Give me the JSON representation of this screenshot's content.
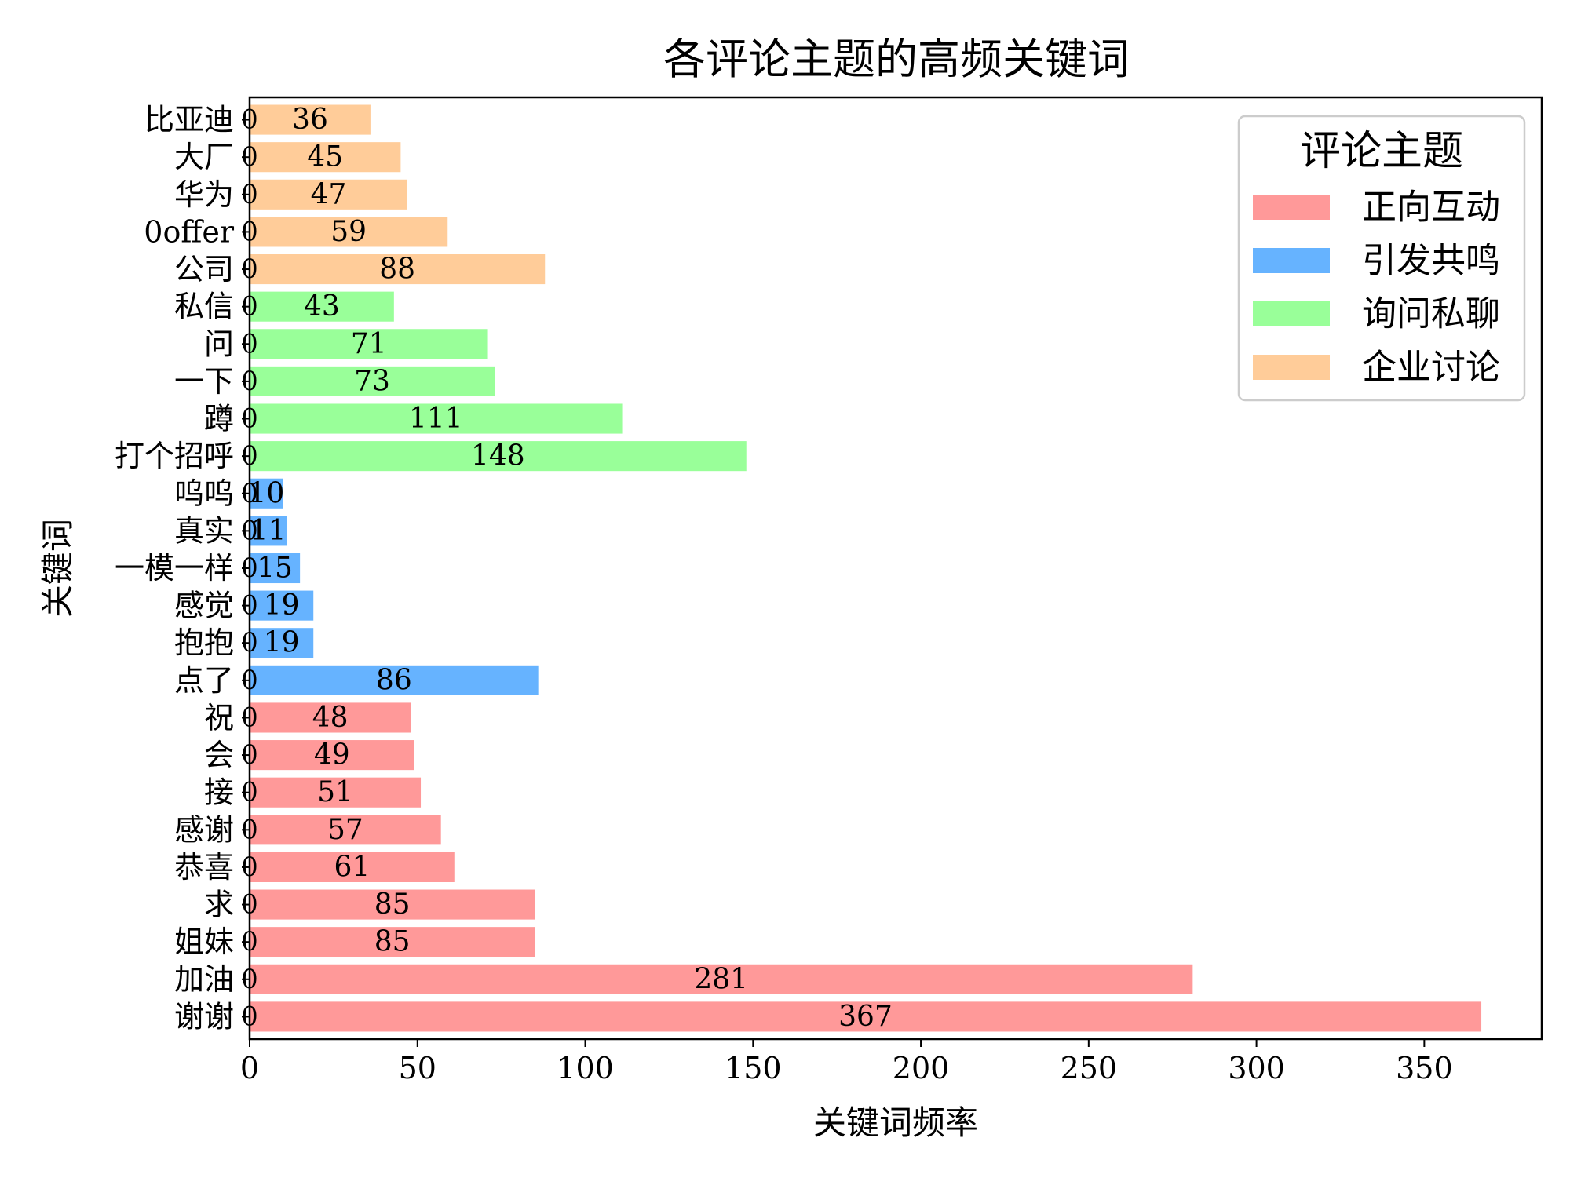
{
  "chart_data": {
    "type": "bar",
    "orientation": "horizontal",
    "title": "各评论主题的高频关键词",
    "xlabel": "关键词频率",
    "ylabel": "关键词",
    "xlim": [
      0,
      385
    ],
    "xticks": [
      0,
      50,
      100,
      150,
      200,
      250,
      300,
      350
    ],
    "grid": false,
    "legend": {
      "title": "评论主题",
      "placement": "top-right",
      "entries": [
        {
          "name": "正向互动",
          "color": "#ff9999"
        },
        {
          "name": "引发共鸣",
          "color": "#66b3ff"
        },
        {
          "name": "询问私聊",
          "color": "#99ff99"
        },
        {
          "name": "企业讨论",
          "color": "#ffcc99"
        }
      ]
    },
    "bars": [
      {
        "keyword": "谢谢",
        "value": 367,
        "theme": "正向互动"
      },
      {
        "keyword": "加油",
        "value": 281,
        "theme": "正向互动"
      },
      {
        "keyword": "姐妹",
        "value": 85,
        "theme": "正向互动"
      },
      {
        "keyword": "求",
        "value": 85,
        "theme": "正向互动"
      },
      {
        "keyword": "恭喜",
        "value": 61,
        "theme": "正向互动"
      },
      {
        "keyword": "感谢",
        "value": 57,
        "theme": "正向互动"
      },
      {
        "keyword": "接",
        "value": 51,
        "theme": "正向互动"
      },
      {
        "keyword": "会",
        "value": 49,
        "theme": "正向互动"
      },
      {
        "keyword": "祝",
        "value": 48,
        "theme": "正向互动"
      },
      {
        "keyword": "点了",
        "value": 86,
        "theme": "引发共鸣"
      },
      {
        "keyword": "抱抱",
        "value": 19,
        "theme": "引发共鸣"
      },
      {
        "keyword": "感觉",
        "value": 19,
        "theme": "引发共鸣"
      },
      {
        "keyword": "一模一样",
        "value": 15,
        "theme": "引发共鸣"
      },
      {
        "keyword": "真实",
        "value": 11,
        "theme": "引发共鸣"
      },
      {
        "keyword": "呜呜",
        "value": 10,
        "theme": "引发共鸣"
      },
      {
        "keyword": "打个招呼",
        "value": 148,
        "theme": "询问私聊"
      },
      {
        "keyword": "蹲",
        "value": 111,
        "theme": "询问私聊"
      },
      {
        "keyword": "一下",
        "value": 73,
        "theme": "询问私聊"
      },
      {
        "keyword": "问",
        "value": 71,
        "theme": "询问私聊"
      },
      {
        "keyword": "私信",
        "value": 43,
        "theme": "询问私聊"
      },
      {
        "keyword": "公司",
        "value": 88,
        "theme": "企业讨论"
      },
      {
        "keyword": "0offer",
        "value": 59,
        "theme": "企业讨论"
      },
      {
        "keyword": "华为",
        "value": 47,
        "theme": "企业讨论"
      },
      {
        "keyword": "大厂",
        "value": 45,
        "theme": "企业讨论"
      },
      {
        "keyword": "比亚迪",
        "value": 36,
        "theme": "企业讨论"
      }
    ],
    "zero_marker_text": "0"
  }
}
